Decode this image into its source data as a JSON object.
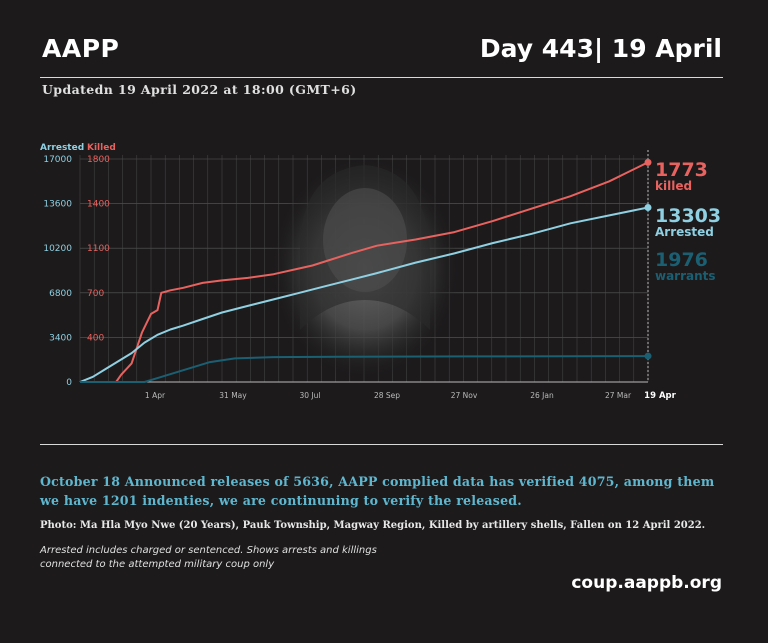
{
  "header": {
    "org": "AAPP",
    "day": "Day 443| 19 April",
    "updated": "Updatedn 19 April 2022 at 18:00 (GMT+6)"
  },
  "chart_data": {
    "type": "line",
    "left_axis_title": "Arrested",
    "right_axis_title": "Killed",
    "arrested_ticks": [
      "17000",
      "13600",
      "10200",
      "6800",
      "3400",
      "0"
    ],
    "killed_ticks": [
      "1800",
      "1400",
      "1100",
      "700",
      "400"
    ],
    "x_ticks": [
      "1 Apr",
      "31 May",
      "30 Jul",
      "28 Sep",
      "27 Nov",
      "26 Jan",
      "27 Mar",
      "19 Apr"
    ],
    "ylim_arrested": [
      0,
      17000
    ],
    "ylim_killed": [
      0,
      1800
    ],
    "grid": true,
    "series": [
      {
        "name": "killed",
        "axis": "killed",
        "color": "#e8625f",
        "x": [
          0,
          28,
          32,
          40,
          48,
          55,
          60,
          63,
          70,
          80,
          95,
          110,
          130,
          150,
          180,
          210,
          230,
          260,
          290,
          320,
          350,
          380,
          410,
          440
        ],
        "y": [
          0,
          0,
          60,
          150,
          400,
          550,
          580,
          720,
          740,
          760,
          800,
          820,
          840,
          870,
          940,
          1040,
          1100,
          1150,
          1210,
          1300,
          1400,
          1500,
          1620,
          1773
        ]
      },
      {
        "name": "Arrested",
        "axis": "arrested",
        "color": "#8fd0e2",
        "x": [
          0,
          10,
          20,
          30,
          40,
          50,
          60,
          70,
          80,
          95,
          110,
          130,
          150,
          170,
          190,
          210,
          230,
          260,
          290,
          320,
          350,
          380,
          410,
          440
        ],
        "y": [
          0,
          400,
          1000,
          1600,
          2200,
          3000,
          3600,
          4000,
          4300,
          4800,
          5300,
          5800,
          6300,
          6800,
          7300,
          7800,
          8300,
          9100,
          9800,
          10600,
          11300,
          12100,
          12700,
          13303
        ]
      },
      {
        "name": "warrants",
        "axis": "arrested",
        "color": "#1b5f73",
        "x": [
          0,
          50,
          60,
          80,
          100,
          120,
          150,
          200,
          300,
          440
        ],
        "y": [
          0,
          0,
          300,
          900,
          1500,
          1800,
          1900,
          1930,
          1950,
          1976
        ]
      }
    ],
    "end_labels": [
      {
        "value": "1773",
        "label": "killed",
        "color": "#e8625f"
      },
      {
        "value": "13303",
        "label": "Arrested",
        "color": "#8fd0e2"
      },
      {
        "value": "1976",
        "label": "warrants",
        "color": "#1b5f73"
      }
    ]
  },
  "note": "October 18 Announced releases of 5636, AAPP complied data has verified 4075, among them we have 1201 indenties, we are continuning to verify the released.",
  "photo_caption": "Photo: Ma Hla Myo Nwe (20 Years), Pauk Township, Magway Region, Killed by artillery shells, Fallen on 12 April 2022.",
  "footnote": {
    "line1": "Arrested includes charged or sentenced. Shows arrests and killings",
    "line2": "connected to the attempted military coup only"
  },
  "website": "coup.aappb.org"
}
